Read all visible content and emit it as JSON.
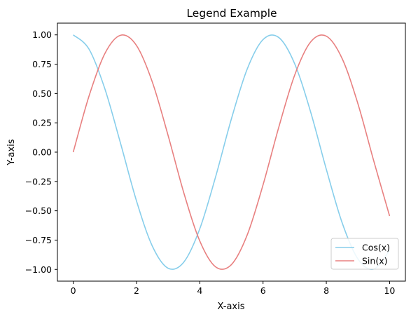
{
  "chart_data": {
    "type": "line",
    "title": "Legend Example",
    "xlabel": "X-axis",
    "ylabel": "Y-axis",
    "xlim": [
      -0.5,
      10.5
    ],
    "ylim": [
      -1.1,
      1.1
    ],
    "x_ticks": [
      0,
      2,
      4,
      6,
      8,
      10
    ],
    "x_tick_labels": [
      "0",
      "2",
      "4",
      "6",
      "8",
      "10"
    ],
    "y_ticks": [
      -1.0,
      -0.75,
      -0.5,
      -0.25,
      0.0,
      0.25,
      0.5,
      0.75,
      1.0
    ],
    "y_tick_labels": [
      "−1.00",
      "−0.75",
      "−0.50",
      "−0.25",
      "0.00",
      "0.25",
      "0.50",
      "0.75",
      "1.00"
    ],
    "grid": false,
    "legend": {
      "placement": "lower-right"
    },
    "x": [
      0,
      0.5,
      1,
      1.5,
      2,
      2.5,
      3,
      3.5,
      4,
      4.5,
      5,
      5.5,
      6,
      6.5,
      7,
      7.5,
      8,
      8.5,
      9,
      9.5,
      10
    ],
    "series": [
      {
        "name": "Cos(x)",
        "color": "#87CEEB",
        "values": [
          1.0,
          0.878,
          0.54,
          0.071,
          -0.416,
          -0.801,
          -0.99,
          -0.936,
          -0.654,
          -0.211,
          0.284,
          0.709,
          0.96,
          0.977,
          0.754,
          0.347,
          -0.146,
          -0.602,
          -0.911,
          -0.997,
          -0.839
        ]
      },
      {
        "name": "Sin(x)",
        "color": "#E88080",
        "values": [
          0.0,
          0.479,
          0.841,
          0.997,
          0.909,
          0.598,
          0.141,
          -0.351,
          -0.757,
          -0.978,
          -0.959,
          -0.706,
          -0.279,
          0.215,
          0.657,
          0.938,
          0.989,
          0.798,
          0.412,
          -0.075,
          -0.544
        ]
      }
    ]
  }
}
